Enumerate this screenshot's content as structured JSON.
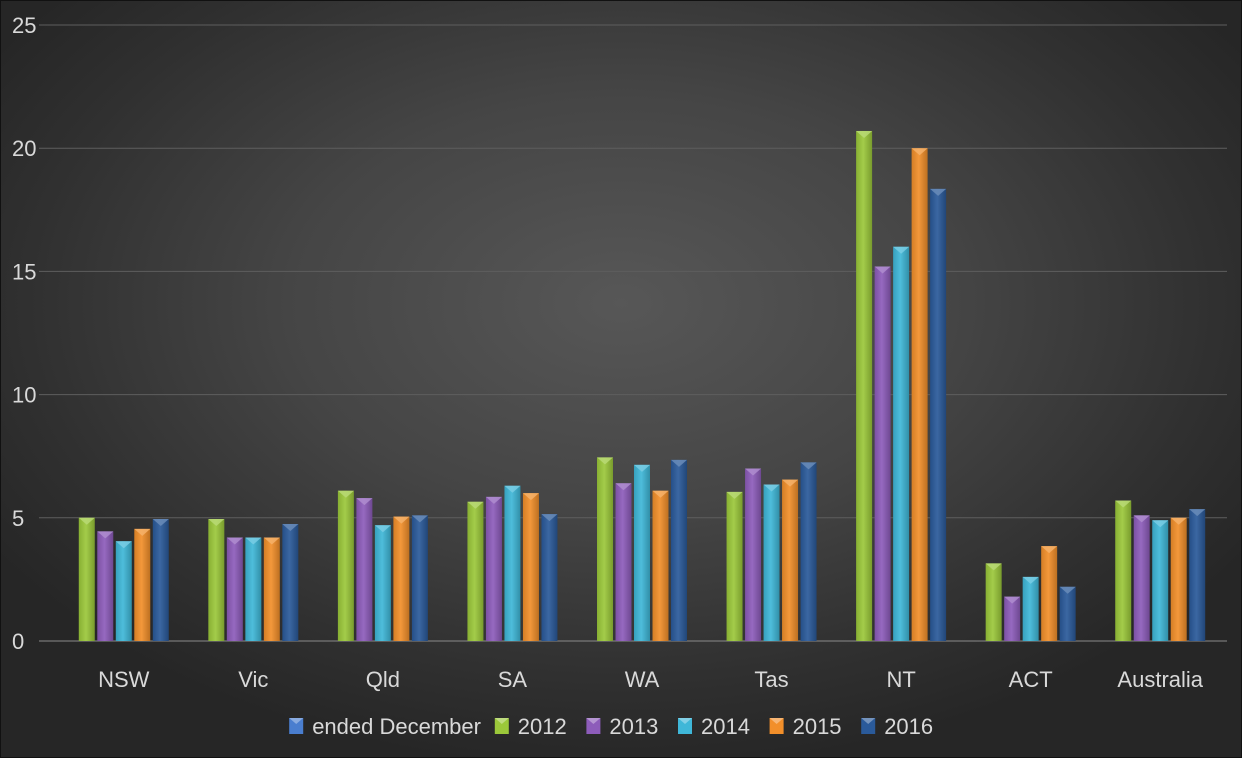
{
  "chart_data": {
    "type": "bar",
    "categories": [
      "NSW",
      "Vic",
      "Qld",
      "SA",
      "WA",
      "Tas",
      "NT",
      "ACT",
      "Australia"
    ],
    "ylim": [
      0,
      25
    ],
    "yticks": [
      "0",
      "5",
      "10",
      "15",
      "20",
      "25"
    ],
    "grid": true,
    "legend_position": "bottom",
    "legend_extra": {
      "name": "ended December",
      "color": "#4a7ecf"
    },
    "series": [
      {
        "name": "2012",
        "color": "#9bc83a",
        "values": [
          5.0,
          4.95,
          6.1,
          5.65,
          7.45,
          6.05,
          20.7,
          3.15,
          5.7
        ]
      },
      {
        "name": "2013",
        "color": "#8d5cba",
        "values": [
          4.45,
          4.2,
          5.8,
          5.85,
          6.4,
          7.0,
          15.2,
          1.8,
          5.1
        ]
      },
      {
        "name": "2014",
        "color": "#3fb7d8",
        "values": [
          4.05,
          4.2,
          4.7,
          6.3,
          7.15,
          6.35,
          16.0,
          2.6,
          4.9
        ]
      },
      {
        "name": "2015",
        "color": "#f28f2a",
        "values": [
          4.55,
          4.2,
          5.05,
          6.0,
          6.1,
          6.55,
          20.0,
          3.85,
          5.0
        ]
      },
      {
        "name": "2016",
        "color": "#2a5a9a",
        "values": [
          4.95,
          4.75,
          5.1,
          5.15,
          7.35,
          7.25,
          18.35,
          2.2,
          5.35
        ]
      }
    ]
  }
}
